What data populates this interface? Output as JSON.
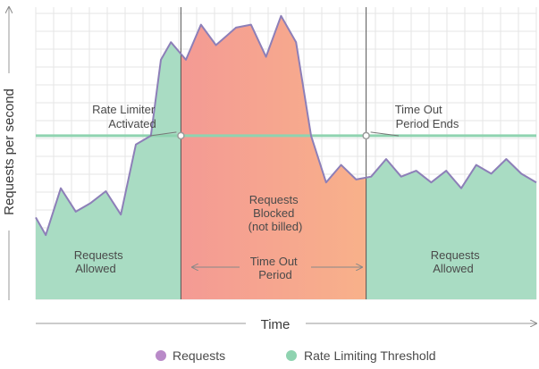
{
  "chart_data": {
    "type": "area",
    "xlabel": "Time",
    "ylabel": "Requests per second",
    "grid": true,
    "legend_placement": "bottom-center",
    "colors": {
      "requests_line": "#8d7fb8",
      "threshold_line": "#8fd3b0",
      "allowed_fill": "#a9dcc3",
      "blocked_fill_start": "#f49a94",
      "blocked_fill_end": "#f8b18a",
      "legend_requests_dot": "#b98ac8",
      "legend_threshold_dot": "#8fd3b0",
      "grid": "#e6e6e6",
      "axis": "#999999"
    },
    "series": [
      {
        "name": "Requests",
        "x": [
          0,
          2,
          5,
          8,
          11,
          14,
          17,
          20,
          23,
          25,
          27,
          30,
          33,
          36,
          40,
          43,
          46,
          49,
          52,
          55,
          58,
          61,
          64,
          67,
          70,
          73,
          76,
          79,
          82,
          85,
          88,
          91,
          94,
          97,
          100
        ],
        "y": [
          28,
          22,
          38,
          30,
          33,
          37,
          29,
          53,
          56,
          82,
          88,
          82,
          94,
          87,
          93,
          94,
          83,
          97,
          88,
          56,
          40,
          46,
          41,
          42,
          48,
          42,
          44,
          40,
          44,
          38,
          46,
          43,
          48,
          43,
          40
        ]
      },
      {
        "name": "Rate Limiting Threshold",
        "x": [
          0,
          100
        ],
        "y": [
          56,
          56
        ]
      }
    ],
    "ylim": [
      0,
      100
    ],
    "xlim": [
      0,
      100
    ],
    "phases": {
      "activated_x": 29,
      "ends_x": 66
    },
    "annotations": {
      "limiter_activated": [
        "Rate Limiter",
        "Activated"
      ],
      "period_ends": [
        "Time Out",
        "Period Ends"
      ],
      "allowed_left": [
        "Requests",
        "Allowed"
      ],
      "allowed_right": [
        "Requests",
        "Allowed"
      ],
      "blocked": [
        "Requests",
        "Blocked",
        "(not billed)"
      ],
      "timeout_period": [
        "Time Out",
        "Period"
      ]
    }
  },
  "legend": {
    "requests_label": "Requests",
    "threshold_label": "Rate Limiting Threshold"
  }
}
